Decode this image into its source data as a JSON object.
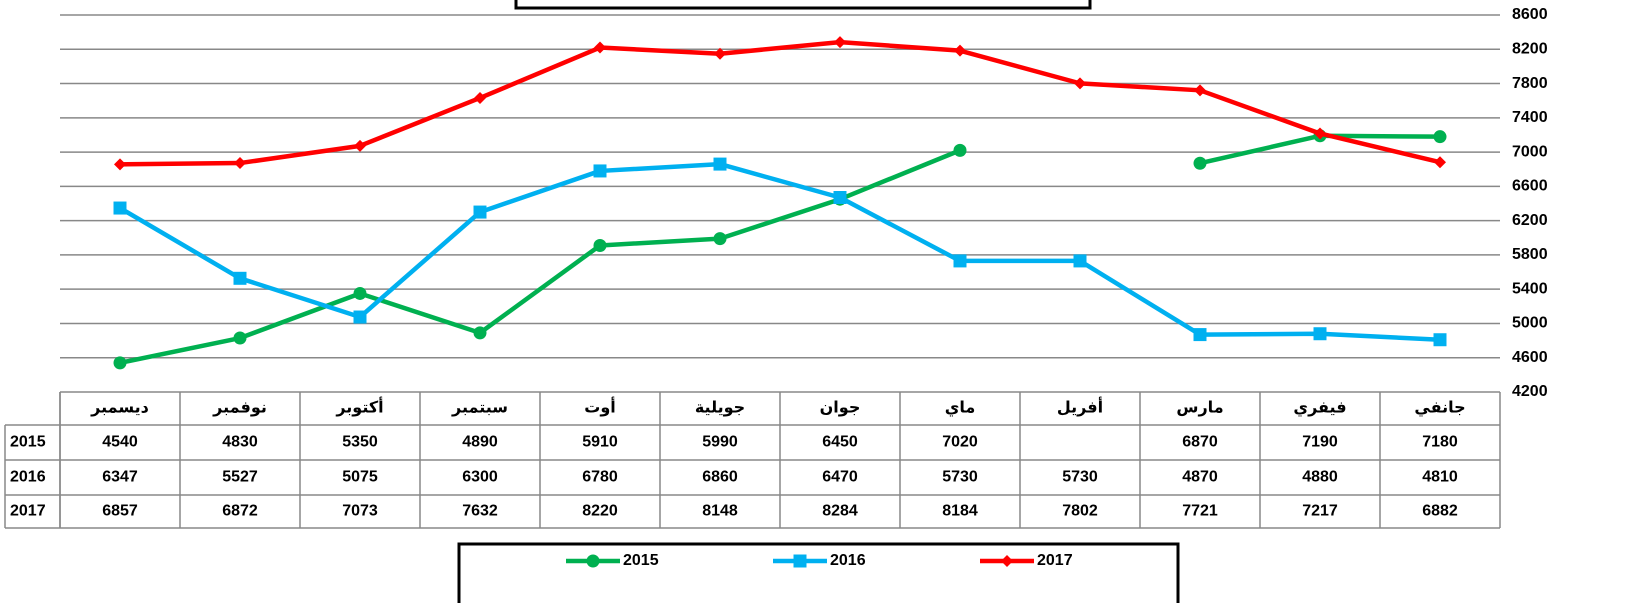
{
  "chart_data": {
    "type": "line",
    "categories": [
      "ديسمبر",
      "نوفمبر",
      "أكتوبر",
      "سبتمبر",
      "أوت",
      "جويلية",
      "جوان",
      "ماي",
      "أفريل",
      "مارس",
      "فيفري",
      "جانفي"
    ],
    "series": [
      {
        "name": "2015",
        "color": "#00b050",
        "marker": "circle",
        "values": [
          4540,
          4830,
          5350,
          4890,
          5910,
          5990,
          6450,
          7020,
          null,
          6870,
          7190,
          7180
        ]
      },
      {
        "name": "2016",
        "color": "#00b0f0",
        "marker": "square",
        "values": [
          6347,
          5527,
          5075,
          6300,
          6780,
          6860,
          6470,
          5730,
          5730,
          4870,
          4880,
          4810
        ]
      },
      {
        "name": "2017",
        "color": "#ff0000",
        "marker": "diamond",
        "values": [
          6857,
          6872,
          7073,
          7632,
          8220,
          8148,
          8284,
          8184,
          7802,
          7721,
          7217,
          6882
        ]
      }
    ],
    "ylim": [
      4200,
      8600
    ],
    "yticks": [
      4200,
      4600,
      5000,
      5400,
      5800,
      6200,
      6600,
      7000,
      7400,
      7800,
      8200,
      8600
    ],
    "grid": true
  }
}
